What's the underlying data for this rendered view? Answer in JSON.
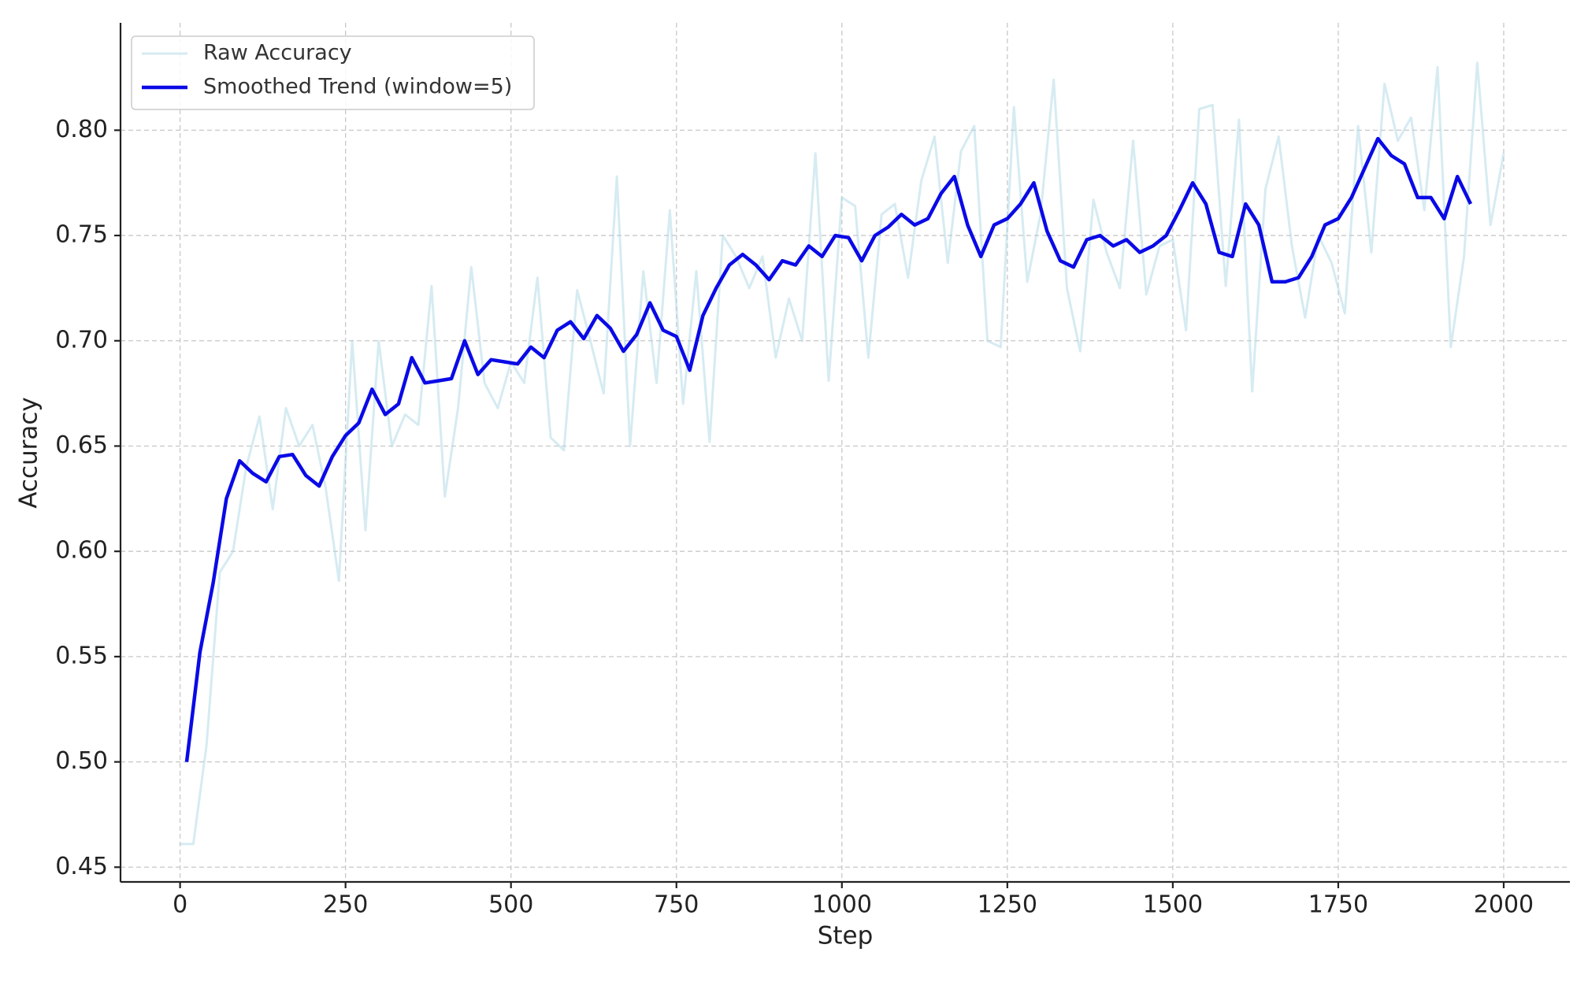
{
  "chart_data": {
    "type": "line",
    "xlabel": "Step",
    "ylabel": "Accuracy",
    "xlim": [
      -90,
      2100
    ],
    "ylim": [
      0.443,
      0.851
    ],
    "xticks": [
      0,
      250,
      500,
      750,
      1000,
      1250,
      1500,
      1750,
      2000
    ],
    "yticks": [
      {
        "value": 0.45,
        "label": "0.45"
      },
      {
        "value": 0.5,
        "label": "0.50"
      },
      {
        "value": 0.55,
        "label": "0.55"
      },
      {
        "value": 0.6,
        "label": "0.60"
      },
      {
        "value": 0.65,
        "label": "0.65"
      },
      {
        "value": 0.7,
        "label": "0.70"
      },
      {
        "value": 0.75,
        "label": "0.75"
      },
      {
        "value": 0.8,
        "label": "0.80"
      }
    ],
    "grid": true,
    "legend": "upper left",
    "series": [
      {
        "name": "Raw Accuracy",
        "color": "#add8e6",
        "x": [
          0,
          20,
          40,
          60,
          80,
          100,
          120,
          140,
          160,
          180,
          200,
          220,
          240,
          260,
          280,
          300,
          320,
          340,
          360,
          380,
          400,
          420,
          440,
          460,
          480,
          500,
          520,
          540,
          560,
          580,
          600,
          620,
          640,
          660,
          680,
          700,
          720,
          740,
          760,
          780,
          800,
          820,
          840,
          860,
          880,
          900,
          920,
          940,
          960,
          980,
          1000,
          1020,
          1040,
          1060,
          1080,
          1100,
          1120,
          1140,
          1160,
          1180,
          1200,
          1220,
          1240,
          1260,
          1280,
          1300,
          1320,
          1340,
          1360,
          1380,
          1400,
          1420,
          1440,
          1460,
          1480,
          1500,
          1520,
          1540,
          1560,
          1580,
          1600,
          1620,
          1640,
          1660,
          1680,
          1700,
          1720,
          1740,
          1760,
          1780,
          1800,
          1820,
          1840,
          1860,
          1880,
          1900,
          1920,
          1940,
          1960,
          1980,
          2000
        ],
        "values": [
          0.461,
          0.461,
          0.508,
          0.59,
          0.6,
          0.64,
          0.664,
          0.62,
          0.668,
          0.65,
          0.66,
          0.63,
          0.586,
          0.7,
          0.61,
          0.7,
          0.65,
          0.665,
          0.66,
          0.726,
          0.626,
          0.668,
          0.735,
          0.68,
          0.668,
          0.69,
          0.68,
          0.73,
          0.654,
          0.648,
          0.724,
          0.7,
          0.675,
          0.778,
          0.65,
          0.733,
          0.68,
          0.762,
          0.67,
          0.733,
          0.652,
          0.75,
          0.74,
          0.725,
          0.74,
          0.692,
          0.72,
          0.7,
          0.789,
          0.681,
          0.768,
          0.764,
          0.692,
          0.76,
          0.765,
          0.73,
          0.776,
          0.797,
          0.737,
          0.79,
          0.802,
          0.7,
          0.697,
          0.811,
          0.728,
          0.76,
          0.824,
          0.725,
          0.695,
          0.767,
          0.742,
          0.725,
          0.795,
          0.722,
          0.745,
          0.748,
          0.705,
          0.81,
          0.812,
          0.726,
          0.805,
          0.676,
          0.772,
          0.797,
          0.745,
          0.711,
          0.75,
          0.737,
          0.713,
          0.802,
          0.742,
          0.822,
          0.795,
          0.806,
          0.762,
          0.83,
          0.697,
          0.74,
          0.832,
          0.755,
          0.789
        ]
      },
      {
        "name": "Smoothed Trend (window=5)",
        "color": "#0a0ae6",
        "x": [
          10,
          30,
          50,
          70,
          90,
          110,
          130,
          150,
          170,
          190,
          210,
          230,
          250,
          270,
          290,
          310,
          330,
          350,
          370,
          390,
          410,
          430,
          450,
          470,
          490,
          510,
          530,
          550,
          570,
          590,
          610,
          630,
          650,
          670,
          690,
          710,
          730,
          750,
          770,
          790,
          810,
          830,
          850,
          870,
          890,
          910,
          930,
          950,
          970,
          990,
          1010,
          1030,
          1050,
          1070,
          1090,
          1110,
          1130,
          1150,
          1170,
          1190,
          1210,
          1230,
          1250,
          1270,
          1290,
          1310,
          1330,
          1350,
          1370,
          1390,
          1410,
          1430,
          1450,
          1470,
          1490,
          1510,
          1530,
          1550,
          1570,
          1590,
          1610,
          1630,
          1650,
          1670,
          1690,
          1710,
          1730,
          1750,
          1770,
          1790,
          1810,
          1830,
          1850,
          1870,
          1890,
          1910,
          1930,
          1950
        ],
        "values": [
          0.5,
          0.552,
          0.585,
          0.625,
          0.643,
          0.637,
          0.633,
          0.645,
          0.646,
          0.636,
          0.631,
          0.645,
          0.655,
          0.661,
          0.677,
          0.665,
          0.67,
          0.692,
          0.68,
          0.681,
          0.682,
          0.7,
          0.684,
          0.691,
          0.69,
          0.689,
          0.697,
          0.692,
          0.705,
          0.709,
          0.701,
          0.712,
          0.706,
          0.695,
          0.703,
          0.718,
          0.705,
          0.702,
          0.686,
          0.712,
          0.725,
          0.736,
          0.741,
          0.736,
          0.729,
          0.738,
          0.736,
          0.745,
          0.74,
          0.75,
          0.749,
          0.738,
          0.75,
          0.754,
          0.76,
          0.755,
          0.758,
          0.77,
          0.778,
          0.755,
          0.74,
          0.755,
          0.758,
          0.765,
          0.775,
          0.752,
          0.738,
          0.735,
          0.748,
          0.75,
          0.745,
          0.748,
          0.742,
          0.745,
          0.75,
          0.762,
          0.775,
          0.765,
          0.742,
          0.74,
          0.765,
          0.755,
          0.728,
          0.728,
          0.73,
          0.74,
          0.755,
          0.758,
          0.768,
          0.782,
          0.796,
          0.788,
          0.784,
          0.768,
          0.768,
          0.758,
          0.778,
          0.765
        ]
      }
    ]
  }
}
